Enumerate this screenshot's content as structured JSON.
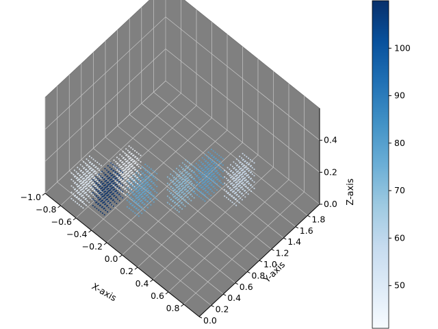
{
  "chart_data": {
    "type": "scatter",
    "projection": "3d",
    "xlabel": "X-axis",
    "ylabel": "Y-axis",
    "zlabel": "Z-axis",
    "xlim": [
      -1.0,
      1.0
    ],
    "ylim": [
      0.0,
      2.0
    ],
    "zlim": [
      0.0,
      0.6
    ],
    "xticks": [
      "−1.0",
      "−0.8",
      "−0.6",
      "−0.4",
      "−0.2",
      "0.0",
      "0.2",
      "0.4",
      "0.6",
      "0.8"
    ],
    "yticks": [
      "0.0",
      "0.2",
      "0.4",
      "0.6",
      "0.8",
      "1.0",
      "1.2",
      "1.4",
      "1.6",
      "1.8"
    ],
    "zticks": [
      "0.0",
      "0.2",
      "0.4"
    ],
    "grid": true,
    "pane_color": "#808080",
    "colormap": "Blues",
    "color_range": [
      41,
      110
    ],
    "colorbar_ticks": [
      "50",
      "60",
      "70",
      "80",
      "90",
      "100"
    ],
    "clusters": [
      {
        "x": -0.7,
        "y": 0.3,
        "z": 0.0,
        "value": 48
      },
      {
        "x": -0.5,
        "y": 0.7,
        "z": 0.0,
        "value": 44
      },
      {
        "x": -0.5,
        "y": 0.4,
        "z": 0.0,
        "value": 110
      },
      {
        "x": -0.25,
        "y": 0.65,
        "z": 0.0,
        "value": 78
      },
      {
        "x": 0.0,
        "y": 1.0,
        "z": 0.0,
        "value": 70
      },
      {
        "x": 0.1,
        "y": 1.3,
        "z": 0.0,
        "value": 80
      },
      {
        "x": 0.35,
        "y": 1.5,
        "z": 0.0,
        "value": 55
      }
    ]
  }
}
